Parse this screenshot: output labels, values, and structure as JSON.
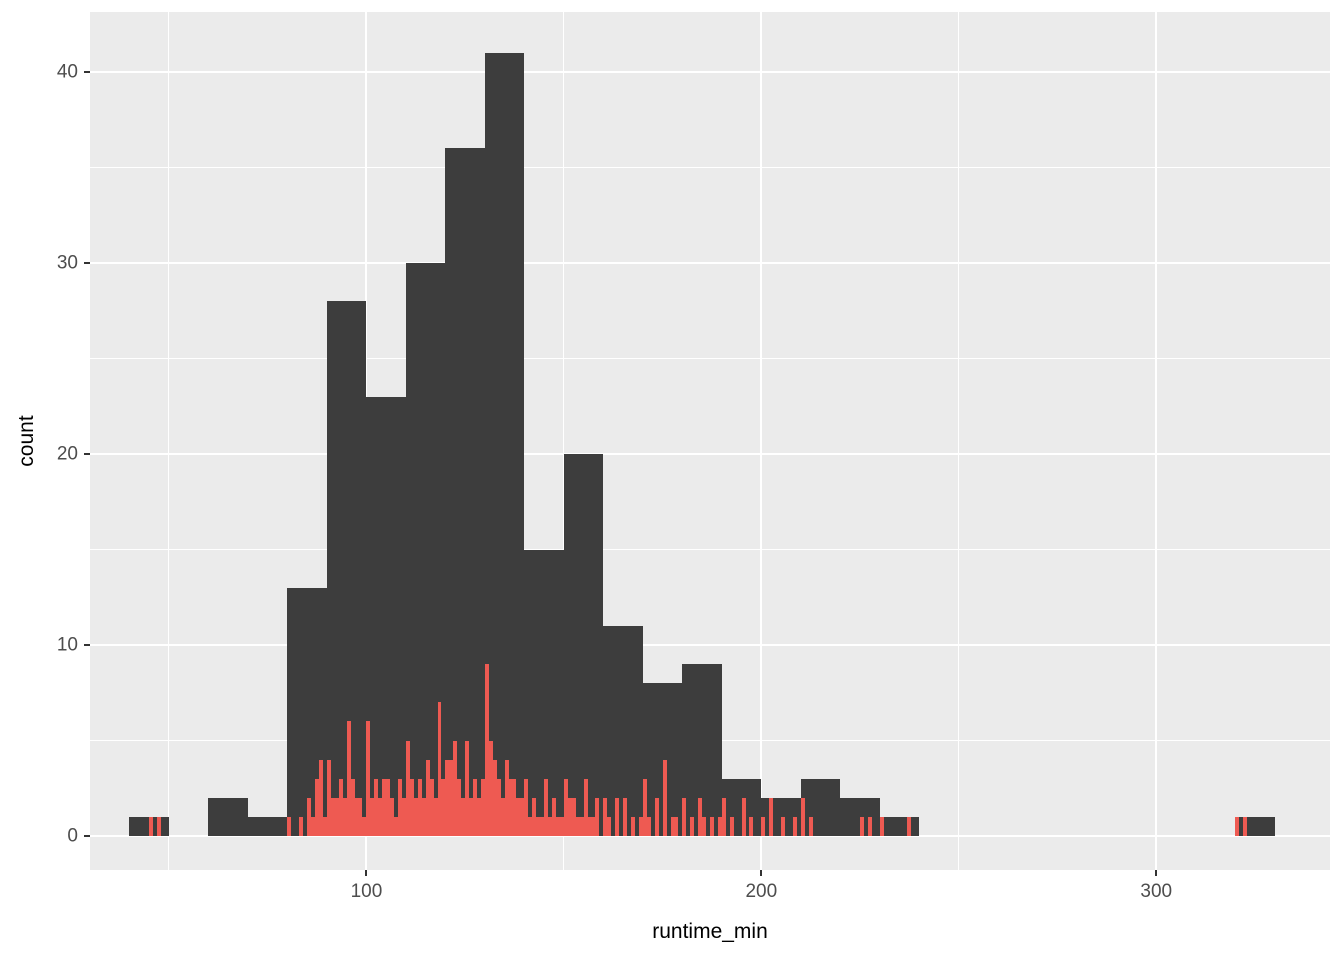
{
  "chart_data": {
    "type": "bar",
    "subtype": "histogram-overlay",
    "title": "",
    "xlabel": "runtime_min",
    "ylabel": "count",
    "xlim": [
      30,
      344
    ],
    "ylim": [
      0,
      43
    ],
    "grid": true,
    "legend": "none",
    "panel_background": "#EBEBEB",
    "gridline_color": "#FFFFFF",
    "axis_text_color": "#4D4D4D",
    "tick_mark_color": "#333333",
    "x_ticks": [
      {
        "value": 100,
        "label": "100"
      },
      {
        "value": 200,
        "label": "200"
      },
      {
        "value": 300,
        "label": "300"
      }
    ],
    "y_ticks": [
      {
        "value": 0,
        "label": "0"
      },
      {
        "value": 10,
        "label": "10"
      },
      {
        "value": 20,
        "label": "20"
      },
      {
        "value": 30,
        "label": "30"
      },
      {
        "value": 40,
        "label": "40"
      }
    ],
    "x_minor_gridlines": [
      50,
      150,
      250
    ],
    "y_minor_gridlines": [
      5,
      15,
      25,
      35
    ],
    "series": [
      {
        "name": "runtime-histogram-binwidth-10",
        "color": "#3D3D3D",
        "binwidth": 10,
        "bins": [
          [
            40,
            1
          ],
          [
            60,
            2
          ],
          [
            70,
            1
          ],
          [
            80,
            13
          ],
          [
            90,
            28
          ],
          [
            100,
            23
          ],
          [
            110,
            30
          ],
          [
            120,
            36
          ],
          [
            130,
            41
          ],
          [
            140,
            15
          ],
          [
            150,
            20
          ],
          [
            160,
            11
          ],
          [
            170,
            8
          ],
          [
            180,
            9
          ],
          [
            190,
            3
          ],
          [
            200,
            2
          ],
          [
            210,
            3
          ],
          [
            220,
            2
          ],
          [
            230,
            1
          ],
          [
            320,
            1
          ]
        ]
      },
      {
        "name": "runtime-histogram-binwidth-1",
        "color": "#EE5A52",
        "binwidth": 1,
        "bins": [
          [
            45,
            1
          ],
          [
            47,
            1
          ],
          [
            80,
            1
          ],
          [
            83,
            1
          ],
          [
            85,
            2
          ],
          [
            86,
            1
          ],
          [
            87,
            3
          ],
          [
            88,
            4
          ],
          [
            89,
            1
          ],
          [
            90,
            4
          ],
          [
            91,
            2
          ],
          [
            92,
            2
          ],
          [
            93,
            3
          ],
          [
            94,
            2
          ],
          [
            95,
            6
          ],
          [
            96,
            3
          ],
          [
            97,
            2
          ],
          [
            98,
            2
          ],
          [
            99,
            1
          ],
          [
            100,
            6
          ],
          [
            101,
            2
          ],
          [
            102,
            3
          ],
          [
            103,
            2
          ],
          [
            104,
            3
          ],
          [
            105,
            3
          ],
          [
            106,
            2
          ],
          [
            107,
            1
          ],
          [
            108,
            3
          ],
          [
            109,
            2
          ],
          [
            110,
            5
          ],
          [
            111,
            3
          ],
          [
            112,
            2
          ],
          [
            113,
            3
          ],
          [
            114,
            2
          ],
          [
            115,
            4
          ],
          [
            116,
            3
          ],
          [
            117,
            2
          ],
          [
            118,
            7
          ],
          [
            119,
            3
          ],
          [
            120,
            4
          ],
          [
            121,
            4
          ],
          [
            122,
            5
          ],
          [
            123,
            3
          ],
          [
            124,
            2
          ],
          [
            125,
            5
          ],
          [
            126,
            2
          ],
          [
            127,
            3
          ],
          [
            128,
            2
          ],
          [
            129,
            3
          ],
          [
            130,
            9
          ],
          [
            131,
            5
          ],
          [
            132,
            4
          ],
          [
            133,
            3
          ],
          [
            134,
            2
          ],
          [
            135,
            4
          ],
          [
            136,
            3
          ],
          [
            137,
            3
          ],
          [
            138,
            2
          ],
          [
            139,
            2
          ],
          [
            140,
            3
          ],
          [
            141,
            1
          ],
          [
            142,
            2
          ],
          [
            143,
            1
          ],
          [
            144,
            1
          ],
          [
            145,
            3
          ],
          [
            146,
            1
          ],
          [
            147,
            2
          ],
          [
            148,
            1
          ],
          [
            149,
            1
          ],
          [
            150,
            3
          ],
          [
            151,
            2
          ],
          [
            152,
            2
          ],
          [
            153,
            1
          ],
          [
            154,
            1
          ],
          [
            155,
            3
          ],
          [
            156,
            1
          ],
          [
            157,
            1
          ],
          [
            158,
            2
          ],
          [
            160,
            2
          ],
          [
            161,
            1
          ],
          [
            163,
            2
          ],
          [
            165,
            2
          ],
          [
            167,
            1
          ],
          [
            169,
            1
          ],
          [
            170,
            3
          ],
          [
            171,
            1
          ],
          [
            173,
            2
          ],
          [
            175,
            4
          ],
          [
            177,
            1
          ],
          [
            178,
            1
          ],
          [
            180,
            2
          ],
          [
            182,
            1
          ],
          [
            184,
            2
          ],
          [
            185,
            1
          ],
          [
            187,
            1
          ],
          [
            189,
            1
          ],
          [
            190,
            2
          ],
          [
            192,
            1
          ],
          [
            195,
            2
          ],
          [
            197,
            1
          ],
          [
            200,
            1
          ],
          [
            202,
            2
          ],
          [
            205,
            1
          ],
          [
            208,
            1
          ],
          [
            210,
            2
          ],
          [
            212,
            1
          ],
          [
            225,
            1
          ],
          [
            227,
            1
          ],
          [
            230,
            1
          ],
          [
            237,
            1
          ],
          [
            320,
            1
          ],
          [
            322,
            1
          ]
        ]
      }
    ]
  }
}
